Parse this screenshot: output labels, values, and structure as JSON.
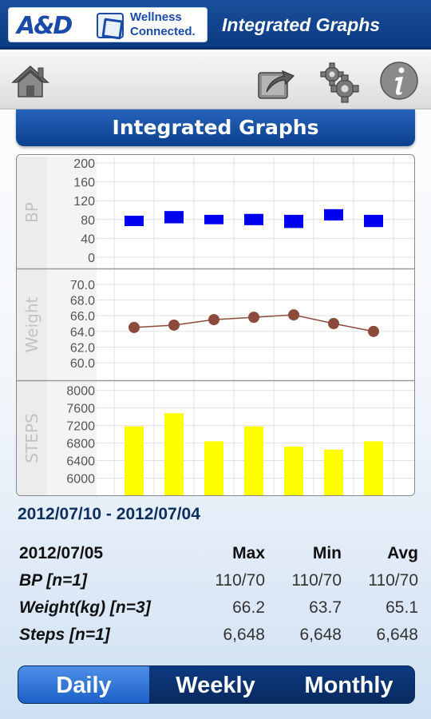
{
  "header": {
    "brand": "A&D",
    "brand_name": "Wellness\nConnected.",
    "title": "Integrated Graphs"
  },
  "toolbar": {
    "icons": [
      "home-icon",
      "share-icon",
      "gear-icon",
      "info-icon"
    ]
  },
  "page_title": "Integrated Graphs",
  "chart_data": [
    {
      "type": "bar",
      "title": "",
      "ylabel": "BP",
      "ylim": [
        0,
        200
      ],
      "yticks": [
        "200",
        "160",
        "120",
        "80",
        "40",
        "0"
      ],
      "series": [
        {
          "values_low": [
            66,
            72,
            70,
            68,
            62,
            78,
            64
          ],
          "values_high": [
            88,
            98,
            90,
            92,
            90,
            102,
            90
          ]
        }
      ],
      "color": "#0000ee",
      "style": "range-boxes"
    },
    {
      "type": "line",
      "title": "",
      "ylabel": "Weight",
      "ylim": [
        59,
        71
      ],
      "yticks": [
        "70.0",
        "68.0",
        "66.0",
        "64.0",
        "62.0",
        "60.0"
      ],
      "values": [
        64.5,
        64.8,
        65.5,
        65.8,
        66.1,
        65.0,
        64.0
      ],
      "color": "#8b4a3a"
    },
    {
      "type": "bar",
      "title": "",
      "ylabel": "STEPS",
      "ylim": [
        5900,
        8050
      ],
      "yticks": [
        "8000",
        "7600",
        "7200",
        "6800",
        "6400",
        "6000"
      ],
      "values": [
        7180,
        7480,
        6840,
        7180,
        6720,
        6650,
        6840
      ],
      "color": "#ffff00"
    }
  ],
  "date_range": "2012/07/10 - 2012/07/04",
  "stats": {
    "date": "2012/07/05",
    "headers": [
      "Max",
      "Min",
      "Avg"
    ],
    "rows": [
      {
        "label": "BP [n=1]",
        "max": "110/70",
        "min": "110/70",
        "avg": "110/70"
      },
      {
        "label": "Weight(kg) [n=3]",
        "max": "66.2",
        "min": "63.7",
        "avg": "65.1"
      },
      {
        "label": "Steps [n=1]",
        "max": "6,648",
        "min": "6,648",
        "avg": "6,648"
      }
    ]
  },
  "tabs": [
    {
      "label": "Daily",
      "selected": true
    },
    {
      "label": "Weekly",
      "selected": false
    },
    {
      "label": "Monthly",
      "selected": false
    }
  ]
}
